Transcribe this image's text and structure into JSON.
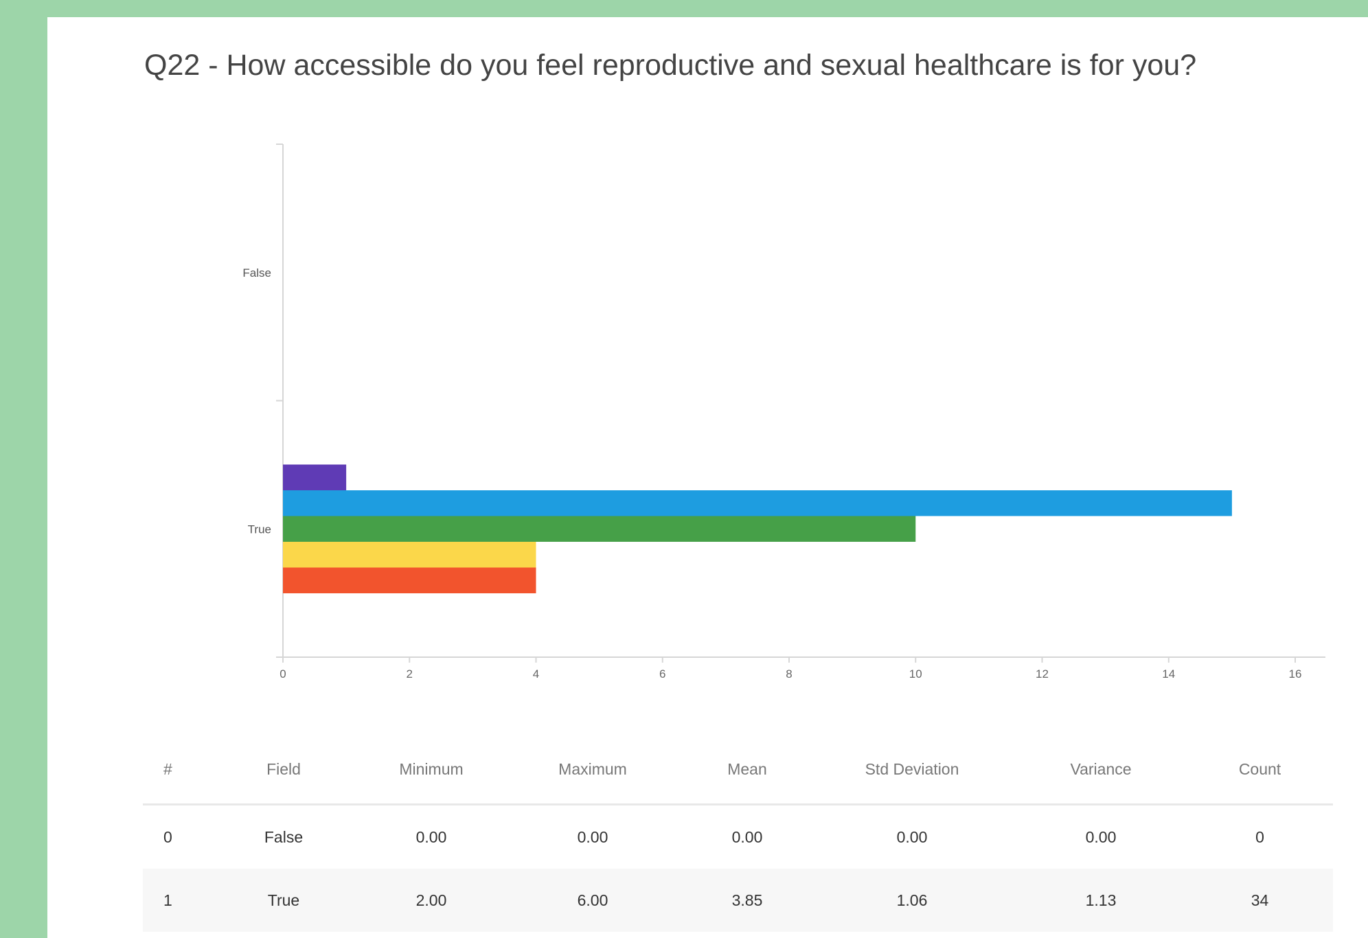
{
  "title": "Q22 - How accessible do you feel reproductive and sexual healthcare is for you?",
  "chart_data": {
    "type": "bar",
    "orientation": "horizontal",
    "categories": [
      "False",
      "True"
    ],
    "series": [
      {
        "color": "#5f3bb5",
        "values": [
          0,
          1
        ]
      },
      {
        "color": "#1e9de0",
        "values": [
          0,
          15
        ]
      },
      {
        "color": "#46a048",
        "values": [
          0,
          10
        ]
      },
      {
        "color": "#fbd74a",
        "values": [
          0,
          4
        ]
      },
      {
        "color": "#f2542d",
        "values": [
          0,
          4
        ]
      }
    ],
    "xlim": [
      0,
      16
    ],
    "xticks": [
      0,
      2,
      4,
      6,
      8,
      10,
      12,
      14,
      16
    ],
    "xlabel": "",
    "ylabel": "",
    "grid": false
  },
  "table": {
    "headers": [
      "#",
      "Field",
      "Minimum",
      "Maximum",
      "Mean",
      "Std Deviation",
      "Variance",
      "Count"
    ],
    "rows": [
      [
        "0",
        "False",
        "0.00",
        "0.00",
        "0.00",
        "0.00",
        "0.00",
        "0"
      ],
      [
        "1",
        "True",
        "2.00",
        "6.00",
        "3.85",
        "1.06",
        "1.13",
        "34"
      ]
    ]
  }
}
